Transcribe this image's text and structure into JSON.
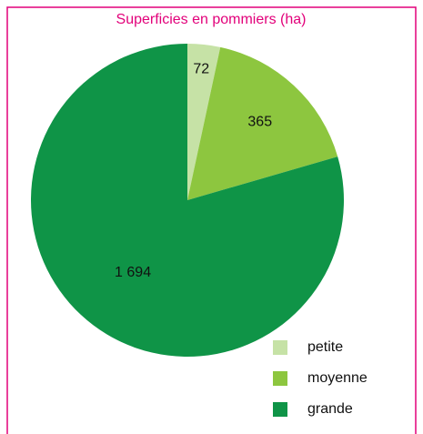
{
  "chart_data": {
    "type": "pie",
    "title": "Superficies en pommiers (ha)",
    "categories": [
      "petite",
      "moyenne",
      "grande"
    ],
    "values": [
      72,
      365,
      1694
    ],
    "value_labels": [
      "72",
      "365",
      "1 694"
    ],
    "colors": [
      "#c6e2a6",
      "#8dc63f",
      "#0f9447"
    ],
    "legend": "bottom-right"
  }
}
